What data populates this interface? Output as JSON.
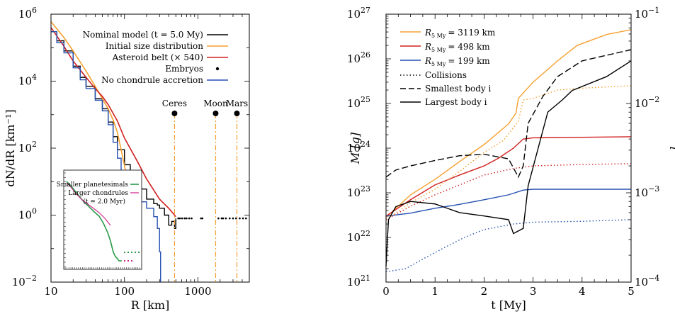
{
  "colors": {
    "black": "#000000",
    "orange": "#f5a030",
    "red": "#d02020",
    "blue": "#2550b0",
    "green": "#2a9a4a",
    "magenta": "#cc2288"
  },
  "chart_data": [
    {
      "type": "line",
      "xlabel": "R [km]",
      "ylabel": "dN/dR [km⁻¹]",
      "xscale": "log",
      "yscale": "log",
      "xlim": [
        10,
        5000
      ],
      "ylim": [
        0.01,
        1000000
      ],
      "x_ticks": [
        {
          "value": 10,
          "label": "10"
        },
        {
          "value": 100,
          "label": "100"
        },
        {
          "value": 1000,
          "label": "1000"
        }
      ],
      "y_ticks": [
        {
          "value": 0.01,
          "base": "10",
          "exp": "−2"
        },
        {
          "value": 1,
          "base": "10",
          "exp": "0"
        },
        {
          "value": 100,
          "base": "10",
          "exp": "2"
        },
        {
          "value": 10000,
          "base": "10",
          "exp": "4"
        },
        {
          "value": 1000000,
          "base": "10",
          "exp": "6"
        }
      ],
      "legend_position": "top-right",
      "series": [
        {
          "name": "Nominal model (t = 5.0 My)",
          "color_key": "black",
          "style": "step",
          "points": [
            [
              10,
              300000
            ],
            [
              12,
              160000
            ],
            [
              15,
              80000
            ],
            [
              20,
              28000
            ],
            [
              25,
              13000
            ],
            [
              30,
              7000
            ],
            [
              40,
              3000
            ],
            [
              50,
              1500
            ],
            [
              60,
              600
            ],
            [
              70,
              220
            ],
            [
              80,
              90
            ],
            [
              100,
              32
            ],
            [
              120,
              14
            ],
            [
              150,
              6
            ],
            [
              200,
              3
            ],
            [
              250,
              2.2
            ],
            [
              280,
              2
            ],
            [
              300,
              1.6
            ],
            [
              350,
              1
            ],
            [
              400,
              0.5
            ],
            [
              440,
              0.65
            ],
            [
              480,
              0.4
            ],
            [
              500,
              0.8
            ]
          ]
        },
        {
          "name": "Initial size distribution",
          "color_key": "orange",
          "style": "line",
          "points": [
            [
              10,
              600000
            ],
            [
              15,
              200000
            ],
            [
              20,
              80000
            ],
            [
              30,
              20000
            ],
            [
              40,
              7000
            ],
            [
              50,
              3000
            ],
            [
              60,
              1500
            ],
            [
              70,
              700
            ],
            [
              80,
              300
            ],
            [
              90,
              90
            ],
            [
              100,
              30
            ],
            [
              110,
              10
            ],
            [
              120,
              3
            ],
            [
              130,
              1.2
            ],
            [
              140,
              0.55
            ]
          ]
        },
        {
          "name": "Asteroid belt (× 540)",
          "color_key": "red",
          "style": "line",
          "points": [
            [
              10,
              400000
            ],
            [
              15,
              110000
            ],
            [
              20,
              40000
            ],
            [
              30,
              13000
            ],
            [
              40,
              6000
            ],
            [
              50,
              3500
            ],
            [
              60,
              2000
            ],
            [
              80,
              650
            ],
            [
              100,
              200
            ],
            [
              150,
              40
            ],
            [
              200,
              12
            ],
            [
              300,
              3
            ],
            [
              400,
              1.6
            ],
            [
              500,
              0.9
            ]
          ]
        },
        {
          "name": "Embryos",
          "color_key": "black",
          "style": "dots",
          "points": [
            [
              540,
              0.8
            ],
            [
              570,
              0.8
            ],
            [
              610,
              0.8
            ],
            [
              660,
              0.8
            ],
            [
              700,
              0.8
            ],
            [
              760,
              0.8
            ],
            [
              820,
              0.8
            ],
            [
              1100,
              0.8
            ],
            [
              1150,
              0.8
            ],
            [
              1900,
              0.8
            ],
            [
              2100,
              0.8
            ],
            [
              2200,
              0.8
            ],
            [
              2400,
              0.8
            ],
            [
              2700,
              0.8
            ],
            [
              3000,
              0.8
            ],
            [
              3300,
              0.8
            ],
            [
              3700,
              0.8
            ],
            [
              4100,
              0.8
            ],
            [
              4500,
              0.8
            ]
          ]
        },
        {
          "name": "No chondrule accretion",
          "color_key": "blue",
          "style": "step",
          "points": [
            [
              10,
              300000
            ],
            [
              12,
              140000
            ],
            [
              15,
              70000
            ],
            [
              20,
              25000
            ],
            [
              25,
              11000
            ],
            [
              30,
              6000
            ],
            [
              40,
              2700
            ],
            [
              50,
              1300
            ],
            [
              60,
              500
            ],
            [
              70,
              150
            ],
            [
              80,
              50
            ],
            [
              90,
              20
            ],
            [
              100,
              10
            ],
            [
              120,
              5
            ],
            [
              150,
              2.5
            ],
            [
              200,
              1.6
            ],
            [
              250,
              0.9
            ],
            [
              280,
              0.4
            ],
            [
              300,
              0.08
            ],
            [
              310,
              0.01
            ]
          ]
        }
      ],
      "annotations": [
        {
          "label": "Ceres",
          "x": 480
        },
        {
          "label": "Moon",
          "x": 1740
        },
        {
          "label": "Mars",
          "x": 3390
        }
      ],
      "inset": {
        "legend": [
          {
            "name": "Smaller planetesimals",
            "color_key": "green"
          },
          {
            "name": "Larger chondrules",
            "color_key": "magenta"
          }
        ],
        "note": "(t = 2.0 Myr)"
      }
    },
    {
      "type": "line",
      "xlabel": "t [My]",
      "ylabel": "M [g]",
      "ylabel_right": "i",
      "yscale": "log",
      "xlim": [
        0,
        5
      ],
      "ylim": [
        1e+21,
        1e+27
      ],
      "ylim_right": [
        0.0001,
        0.1
      ],
      "x_ticks": [
        0,
        1,
        2,
        3,
        4,
        5
      ],
      "y_ticks": [
        {
          "value": 1e+21,
          "base": "10",
          "exp": "21"
        },
        {
          "value": 1e+22,
          "base": "10",
          "exp": "22"
        },
        {
          "value": 1e+23,
          "base": "10",
          "exp": "23"
        },
        {
          "value": 1e+24,
          "base": "10",
          "exp": "24"
        },
        {
          "value": 1e+25,
          "base": "10",
          "exp": "25"
        },
        {
          "value": 1e+26,
          "base": "10",
          "exp": "26"
        },
        {
          "value": 1e+27,
          "base": "10",
          "exp": "27"
        }
      ],
      "y_ticks_right": [
        {
          "value": 0.0001,
          "base": "10",
          "exp": "−4"
        },
        {
          "value": 0.001,
          "base": "10",
          "exp": "−3"
        },
        {
          "value": 0.01,
          "base": "10",
          "exp": "−2"
        },
        {
          "value": 0.1,
          "base": "10",
          "exp": "−1"
        }
      ],
      "legend_position": "top-left",
      "legend": [
        {
          "label": "R",
          "sub": "5 My",
          "value": "= 3119 km",
          "color_key": "orange"
        },
        {
          "label": "R",
          "sub": "5 My",
          "value": "= 498 km",
          "color_key": "red"
        },
        {
          "label": "R",
          "sub": "5 My",
          "value": "= 199 km",
          "color_key": "blue"
        }
      ],
      "style_legend": [
        {
          "label": "Collisions",
          "style": "dotted"
        },
        {
          "label": "Smallest body i",
          "style": "dashed"
        },
        {
          "label": "Largest body i",
          "style": "solid"
        }
      ],
      "series": [
        {
          "color_key": "orange",
          "style": "solid",
          "axis": "left",
          "points": [
            [
              0,
              2.8e+22
            ],
            [
              0.5,
              9e+22
            ],
            [
              1,
              2e+23
            ],
            [
              1.5,
              5e+23
            ],
            [
              2,
              1.2e+24
            ],
            [
              2.5,
              3.5e+24
            ],
            [
              2.65,
              6e+24
            ],
            [
              2.7,
              1.3e+25
            ],
            [
              3,
              3e+25
            ],
            [
              3.5,
              9e+25
            ],
            [
              3.9,
              2e+26
            ],
            [
              4.5,
              3.5e+26
            ],
            [
              5,
              4.5e+26
            ]
          ]
        },
        {
          "color_key": "red",
          "style": "solid",
          "axis": "left",
          "points": [
            [
              0,
              3e+22
            ],
            [
              0.5,
              7e+22
            ],
            [
              1,
              1.5e+23
            ],
            [
              1.5,
              2.5e+23
            ],
            [
              2,
              4e+23
            ],
            [
              2.3,
              6e+23
            ],
            [
              2.6,
              1e+24
            ],
            [
              2.8,
              1.6e+24
            ],
            [
              3,
              1.7e+24
            ],
            [
              4,
              1.75e+24
            ],
            [
              5,
              1.8e+24
            ]
          ]
        },
        {
          "color_key": "blue",
          "style": "solid",
          "axis": "left",
          "points": [
            [
              0,
              3e+22
            ],
            [
              0.5,
              3.5e+22
            ],
            [
              1,
              4.5e+22
            ],
            [
              1.5,
              5.5e+22
            ],
            [
              2,
              7e+22
            ],
            [
              2.5,
              9e+22
            ],
            [
              2.8,
              1.15e+23
            ],
            [
              3,
              1.2e+23
            ],
            [
              4,
              1.2e+23
            ],
            [
              5,
              1.2e+23
            ]
          ]
        },
        {
          "color_key": "orange",
          "style": "dotted",
          "axis": "left",
          "points": [
            [
              0,
              2.5e+22
            ],
            [
              0.5,
              6e+22
            ],
            [
              1,
              1.2e+23
            ],
            [
              1.5,
              3e+23
            ],
            [
              2,
              8e+23
            ],
            [
              2.4,
              1.5e+24
            ],
            [
              2.7,
              4e+24
            ],
            [
              2.8,
              1.2e+25
            ],
            [
              3,
              1.3e+25
            ],
            [
              3.5,
              2e+25
            ],
            [
              4,
              2.2e+25
            ],
            [
              5,
              2.5e+25
            ]
          ]
        },
        {
          "color_key": "red",
          "style": "dotted",
          "axis": "left",
          "points": [
            [
              0,
              2.5e+22
            ],
            [
              0.5,
              5e+22
            ],
            [
              1,
              9e+22
            ],
            [
              1.5,
              1.5e+23
            ],
            [
              2,
              2.5e+23
            ],
            [
              2.6,
              3.5e+23
            ],
            [
              3,
              4e+23
            ],
            [
              4,
              4.3e+23
            ],
            [
              5,
              4.5e+23
            ]
          ]
        },
        {
          "color_key": "blue",
          "style": "dotted",
          "axis": "left",
          "points": [
            [
              0,
              1.7e+21
            ],
            [
              0.4,
              2e+21
            ],
            [
              0.8,
              3.5e+21
            ],
            [
              1.2,
              6e+21
            ],
            [
              1.6,
              1e+22
            ],
            [
              2,
              1.5e+22
            ],
            [
              2.6,
              2e+22
            ],
            [
              3,
              2.2e+22
            ],
            [
              4,
              2.3e+22
            ],
            [
              5,
              2.5e+22
            ]
          ]
        },
        {
          "color_key": "black",
          "style": "dashed",
          "axis": "right",
          "points": [
            [
              0,
              0.0015
            ],
            [
              0.2,
              0.0018
            ],
            [
              0.5,
              0.002
            ],
            [
              1,
              0.0023
            ],
            [
              1.5,
              0.0026
            ],
            [
              2,
              0.0027
            ],
            [
              2.5,
              0.0024
            ],
            [
              2.7,
              0.0015
            ],
            [
              2.8,
              0.002
            ],
            [
              2.9,
              0.006
            ],
            [
              3.2,
              0.012
            ],
            [
              3.5,
              0.02
            ],
            [
              4,
              0.03
            ],
            [
              5,
              0.04
            ]
          ]
        },
        {
          "color_key": "black",
          "style": "solid",
          "axis": "right",
          "points": [
            [
              0,
              0.00015
            ],
            [
              0.05,
              0.0005
            ],
            [
              0.2,
              0.0007
            ],
            [
              0.5,
              0.0008
            ],
            [
              1,
              0.00075
            ],
            [
              1.5,
              0.0006
            ],
            [
              2,
              0.00055
            ],
            [
              2.5,
              0.0005
            ],
            [
              2.6,
              0.00035
            ],
            [
              2.8,
              0.0004
            ],
            [
              2.9,
              0.0012
            ],
            [
              3.3,
              0.008
            ],
            [
              3.6,
              0.011
            ],
            [
              3.8,
              0.014
            ],
            [
              4.5,
              0.02
            ],
            [
              5,
              0.03
            ]
          ]
        }
      ]
    }
  ]
}
